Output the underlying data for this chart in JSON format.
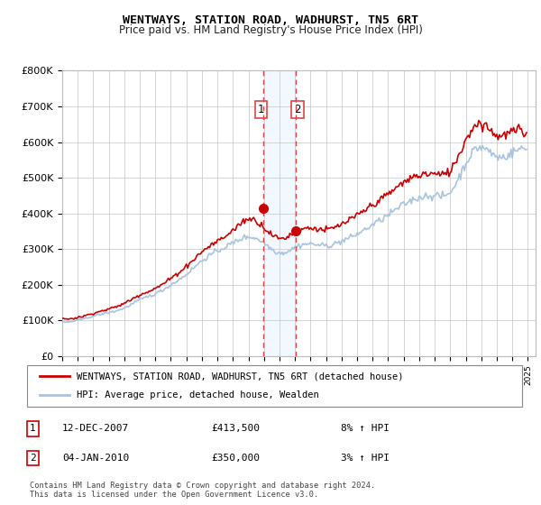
{
  "title": "WENTWAYS, STATION ROAD, WADHURST, TN5 6RT",
  "subtitle": "Price paid vs. HM Land Registry's House Price Index (HPI)",
  "ylim": [
    0,
    800000
  ],
  "yticks": [
    0,
    100000,
    200000,
    300000,
    400000,
    500000,
    600000,
    700000,
    800000
  ],
  "ytick_labels": [
    "£0",
    "£100K",
    "£200K",
    "£300K",
    "£400K",
    "£500K",
    "£600K",
    "£700K",
    "£800K"
  ],
  "hpi_color": "#a8c4e0",
  "price_color": "#cc0000",
  "annotation_shade_color": "#ddeeff",
  "annotation_line_color": "#dd4444",
  "bg_color": "#ffffff",
  "grid_color": "#cccccc",
  "legend_entries": [
    "WENTWAYS, STATION ROAD, WADHURST, TN5 6RT (detached house)",
    "HPI: Average price, detached house, Wealden"
  ],
  "transaction_1_label": "1",
  "transaction_1_date": "12-DEC-2007",
  "transaction_1_price": "£413,500",
  "transaction_1_hpi": "8% ↑ HPI",
  "transaction_2_label": "2",
  "transaction_2_date": "04-JAN-2010",
  "transaction_2_price": "£350,000",
  "transaction_2_hpi": "3% ↑ HPI",
  "footer": "Contains HM Land Registry data © Crown copyright and database right 2024.\nThis data is licensed under the Open Government Licence v3.0.",
  "sale_1_x": 2007.95,
  "sale_1_y": 413500,
  "sale_2_x": 2010.02,
  "sale_2_y": 350000,
  "xlim_left": 1995.0,
  "xlim_right": 2025.5
}
